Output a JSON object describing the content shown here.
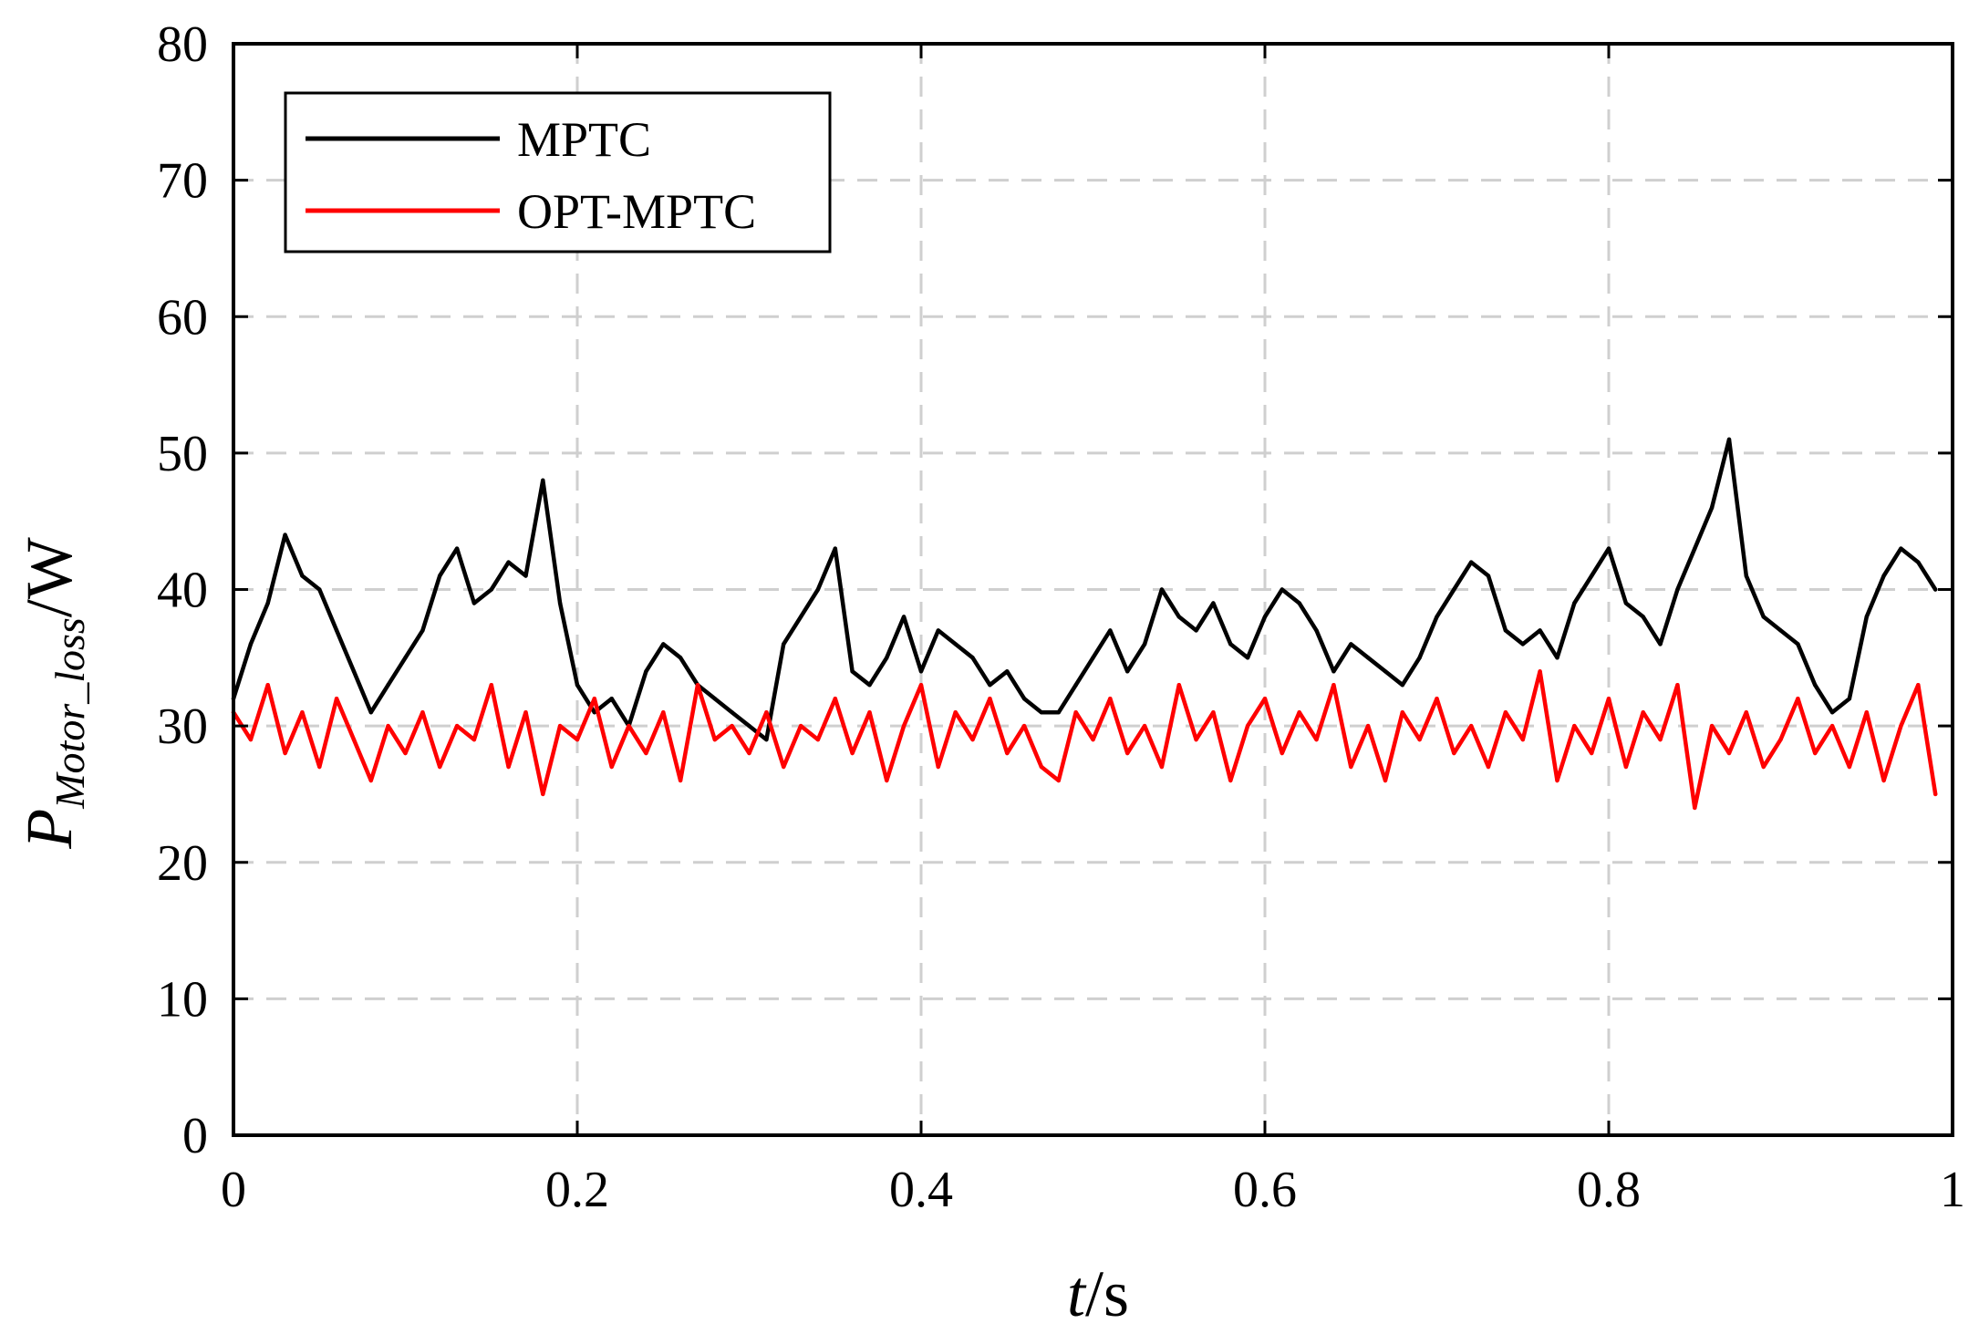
{
  "chart_data": {
    "type": "line",
    "xlabel": {
      "italic": "t",
      "rest": "/s"
    },
    "ylabel": {
      "base": "P",
      "sub": "Motor_loss",
      "rest": "/W"
    },
    "xlim": [
      0,
      1
    ],
    "ylim": [
      0,
      80
    ],
    "x_ticks": [
      "0",
      "0.2",
      "0.4",
      "0.6",
      "0.8",
      "1"
    ],
    "y_ticks": [
      "0",
      "10",
      "20",
      "30",
      "40",
      "50",
      "60",
      "70",
      "80"
    ],
    "grid": true,
    "legend_position": "top-left",
    "series": [
      {
        "name": "MPTC",
        "color": "#000000",
        "x": [
          0,
          0.01,
          0.02,
          0.03,
          0.04,
          0.05,
          0.06,
          0.07,
          0.08,
          0.09,
          0.1,
          0.11,
          0.12,
          0.13,
          0.14,
          0.15,
          0.16,
          0.17,
          0.18,
          0.19,
          0.2,
          0.21,
          0.22,
          0.23,
          0.24,
          0.25,
          0.26,
          0.27,
          0.28,
          0.29,
          0.3,
          0.31,
          0.32,
          0.33,
          0.34,
          0.35,
          0.36,
          0.37,
          0.38,
          0.39,
          0.4,
          0.41,
          0.42,
          0.43,
          0.44,
          0.45,
          0.46,
          0.47,
          0.48,
          0.49,
          0.5,
          0.51,
          0.52,
          0.53,
          0.54,
          0.55,
          0.56,
          0.57,
          0.58,
          0.59,
          0.6,
          0.61,
          0.62,
          0.63,
          0.64,
          0.65,
          0.66,
          0.67,
          0.68,
          0.69,
          0.7,
          0.71,
          0.72,
          0.73,
          0.74,
          0.75,
          0.76,
          0.77,
          0.78,
          0.79,
          0.8,
          0.81,
          0.82,
          0.83,
          0.84,
          0.85,
          0.86,
          0.87,
          0.88,
          0.89,
          0.9,
          0.91,
          0.92,
          0.93,
          0.94,
          0.95,
          0.96,
          0.97,
          0.98,
          0.99
        ],
        "y": [
          32,
          36,
          39,
          44,
          41,
          40,
          37,
          34,
          31,
          33,
          35,
          37,
          41,
          43,
          39,
          40,
          42,
          41,
          48,
          39,
          33,
          31,
          32,
          30,
          34,
          36,
          35,
          33,
          32,
          31,
          30,
          29,
          36,
          38,
          40,
          43,
          34,
          33,
          35,
          38,
          34,
          37,
          36,
          35,
          33,
          34,
          32,
          31,
          31,
          33,
          35,
          37,
          34,
          36,
          40,
          38,
          37,
          39,
          36,
          35,
          38,
          40,
          39,
          37,
          34,
          36,
          35,
          34,
          33,
          35,
          38,
          40,
          42,
          41,
          37,
          36,
          37,
          35,
          39,
          41,
          43,
          39,
          38,
          36,
          40,
          43,
          46,
          51,
          41,
          38,
          37,
          36,
          33,
          31,
          32,
          38,
          41,
          43,
          42,
          40
        ]
      },
      {
        "name": "OPT-MPTC",
        "color": "#ff0000",
        "x": [
          0,
          0.01,
          0.02,
          0.03,
          0.04,
          0.05,
          0.06,
          0.07,
          0.08,
          0.09,
          0.1,
          0.11,
          0.12,
          0.13,
          0.14,
          0.15,
          0.16,
          0.17,
          0.18,
          0.19,
          0.2,
          0.21,
          0.22,
          0.23,
          0.24,
          0.25,
          0.26,
          0.27,
          0.28,
          0.29,
          0.3,
          0.31,
          0.32,
          0.33,
          0.34,
          0.35,
          0.36,
          0.37,
          0.38,
          0.39,
          0.4,
          0.41,
          0.42,
          0.43,
          0.44,
          0.45,
          0.46,
          0.47,
          0.48,
          0.49,
          0.5,
          0.51,
          0.52,
          0.53,
          0.54,
          0.55,
          0.56,
          0.57,
          0.58,
          0.59,
          0.6,
          0.61,
          0.62,
          0.63,
          0.64,
          0.65,
          0.66,
          0.67,
          0.68,
          0.69,
          0.7,
          0.71,
          0.72,
          0.73,
          0.74,
          0.75,
          0.76,
          0.77,
          0.78,
          0.79,
          0.8,
          0.81,
          0.82,
          0.83,
          0.84,
          0.85,
          0.86,
          0.87,
          0.88,
          0.89,
          0.9,
          0.91,
          0.92,
          0.93,
          0.94,
          0.95,
          0.96,
          0.97,
          0.98,
          0.99
        ],
        "y": [
          31,
          29,
          33,
          28,
          31,
          27,
          32,
          29,
          26,
          30,
          28,
          31,
          27,
          30,
          29,
          33,
          27,
          31,
          25,
          30,
          29,
          32,
          27,
          30,
          28,
          31,
          26,
          33,
          29,
          30,
          28,
          31,
          27,
          30,
          29,
          32,
          28,
          31,
          26,
          30,
          33,
          27,
          31,
          29,
          32,
          28,
          30,
          27,
          26,
          31,
          29,
          32,
          28,
          30,
          27,
          33,
          29,
          31,
          26,
          30,
          32,
          28,
          31,
          29,
          33,
          27,
          30,
          26,
          31,
          29,
          32,
          28,
          30,
          27,
          31,
          29,
          34,
          26,
          30,
          28,
          32,
          27,
          31,
          29,
          33,
          24,
          30,
          28,
          31,
          27,
          29,
          32,
          28,
          30,
          27,
          31,
          26,
          30,
          33,
          25
        ]
      }
    ]
  }
}
